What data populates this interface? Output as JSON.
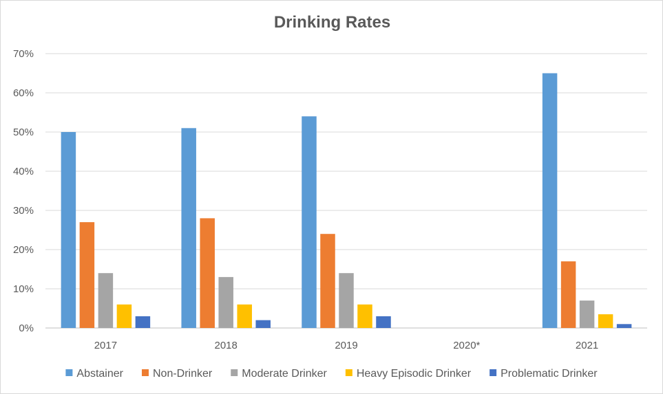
{
  "chart_data": {
    "type": "bar",
    "title": "Drinking Rates",
    "categories": [
      "2017",
      "2018",
      "2019",
      "2020*",
      "2021"
    ],
    "ylim": [
      0,
      70
    ],
    "yticks": [
      0,
      10,
      20,
      30,
      40,
      50,
      60,
      70
    ],
    "ytick_labels": [
      "0%",
      "10%",
      "20%",
      "30%",
      "40%",
      "50%",
      "60%",
      "70%"
    ],
    "grid": true,
    "legend": "bottom",
    "series": [
      {
        "name": "Abstainer",
        "color": "#5b9bd5",
        "values": [
          50,
          51,
          54,
          null,
          65
        ]
      },
      {
        "name": "Non-Drinker",
        "color": "#ed7d31",
        "values": [
          27,
          28,
          24,
          null,
          17
        ]
      },
      {
        "name": "Moderate Drinker",
        "color": "#a5a5a5",
        "values": [
          14,
          13,
          14,
          null,
          7
        ]
      },
      {
        "name": "Heavy Episodic Drinker",
        "color": "#ffc000",
        "values": [
          6,
          6,
          6,
          null,
          3.5
        ]
      },
      {
        "name": "Problematic Drinker",
        "color": "#4472c4",
        "values": [
          3,
          2,
          3,
          null,
          1
        ]
      }
    ]
  }
}
